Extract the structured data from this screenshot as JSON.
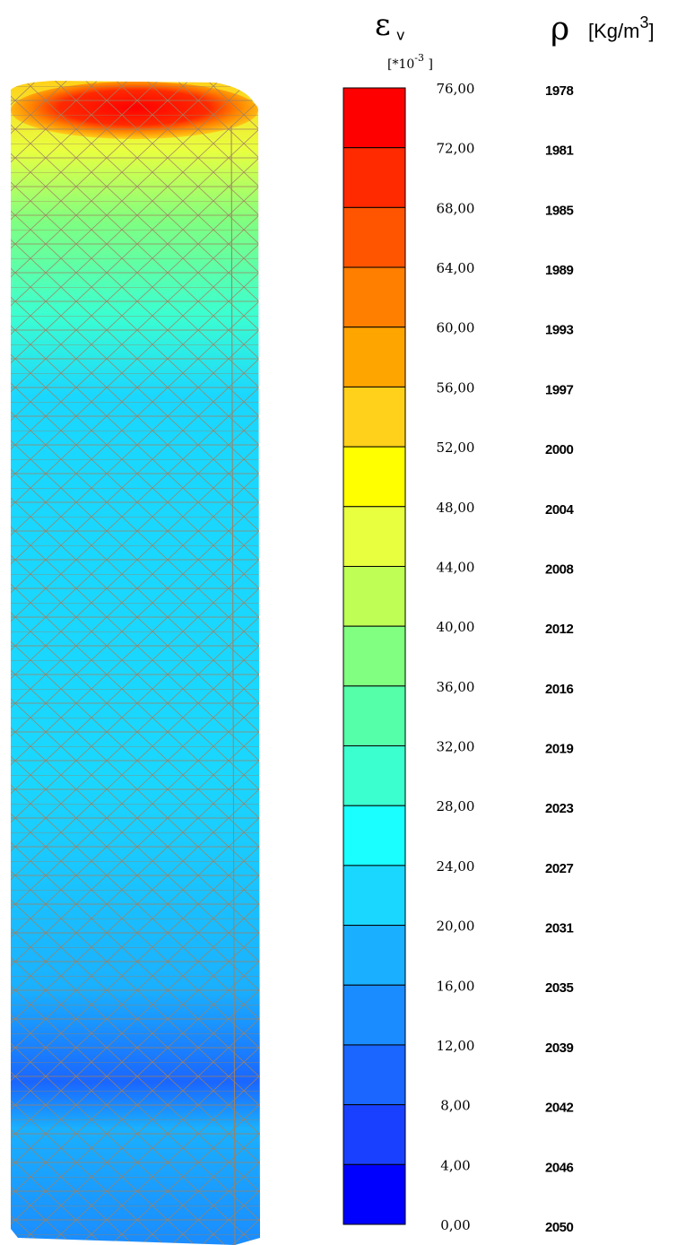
{
  "legend": {
    "strain_symbol": "ε",
    "strain_subscript": "v",
    "strain_unit_base": "[*10",
    "strain_unit_exp": "-3",
    "strain_unit_end": " ]",
    "density_symbol": "ρ",
    "density_unit_base": "[Kg/m",
    "density_unit_exp": "3",
    "density_unit_end": "]",
    "strain_labels": [
      "76,00",
      "72,00",
      "68,00",
      "64,00",
      "60,00",
      "56,00",
      "52,00",
      "48,00",
      "44,00",
      "40,00",
      "36,00",
      "32,00",
      "28,00",
      "24,00",
      "20,00",
      "16,00",
      "12,00",
      "8,00",
      "4,00",
      "0,00"
    ],
    "density_labels": [
      "1978",
      "1981",
      "1985",
      "1989",
      "1993",
      "1997",
      "2000",
      "2004",
      "2008",
      "2012",
      "2016",
      "2019",
      "2023",
      "2027",
      "2031",
      "2035",
      "2039",
      "2042",
      "2046",
      "2050"
    ],
    "band_colors": [
      "#ff0000",
      "#ff2a00",
      "#ff5500",
      "#ff7f00",
      "#ffa500",
      "#ffd11a",
      "#ffff00",
      "#e8ff40",
      "#bfff55",
      "#80ff80",
      "#55ffaa",
      "#3cffd0",
      "#1affff",
      "#1ad7ff",
      "#1ab0ff",
      "#1a8cff",
      "#1a66ff",
      "#1a40ff",
      "#0000ff"
    ]
  }
}
